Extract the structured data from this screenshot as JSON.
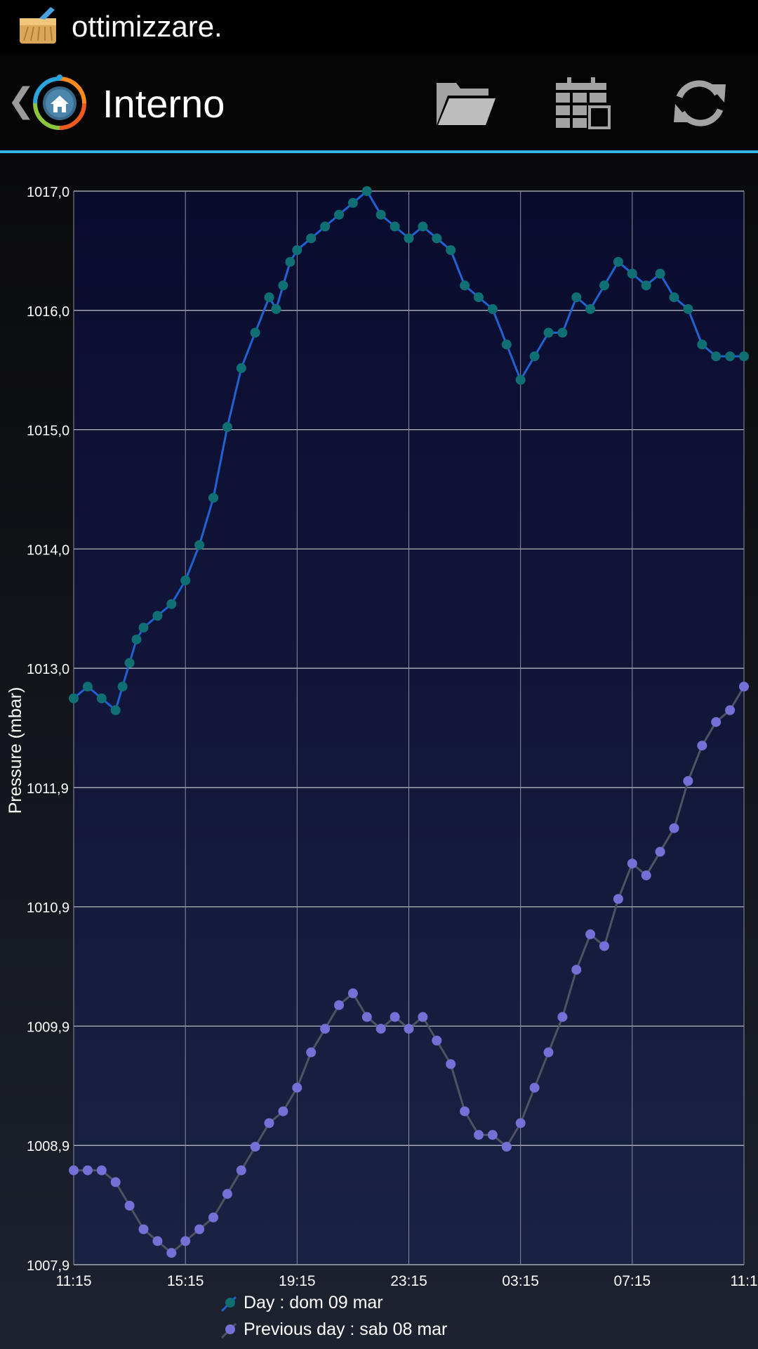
{
  "status_bar": {
    "title": "ottimizzare.",
    "icon": "broom-icon"
  },
  "action_bar": {
    "title": "Interno",
    "back_icon": "chevron-left-icon",
    "app_icon": "home-station-icon",
    "actions": [
      "folder-icon",
      "calendar-icon",
      "refresh-icon"
    ]
  },
  "colors": {
    "accent": "#33b5e5",
    "day_line": "#1f62d1",
    "day_point": "#0f6f72",
    "prev_line": "#4f5260",
    "prev_point": "#7470d6"
  },
  "chart_data": {
    "type": "line",
    "ylabel": "Pressure (mbar)",
    "xlabel": "",
    "y_ticks": [
      "1017,0",
      "1016,0",
      "1015,0",
      "1014,0",
      "1013,0",
      "1011,9",
      "1010,9",
      "1009,9",
      "1008,9",
      "1007,9"
    ],
    "ylim": [
      1007.9,
      1017.0
    ],
    "x_ticks": [
      "11:15",
      "15:15",
      "19:15",
      "23:15",
      "03:15",
      "07:15",
      "11:1"
    ],
    "xlim_hours": [
      0,
      24
    ],
    "grid": true,
    "legend_position": "bottom",
    "series": [
      {
        "name": "Day : dom 09 mar",
        "x": [
          0,
          0.5,
          1,
          1.5,
          1.75,
          2,
          2.25,
          2.5,
          3,
          3.5,
          4,
          4.5,
          5,
          5.5,
          6,
          6.5,
          7,
          7.25,
          7.5,
          7.75,
          8,
          8.5,
          9,
          9.5,
          10,
          10.5,
          11,
          11.5,
          12,
          12.5,
          13,
          13.5,
          14,
          14.5,
          15,
          15.5,
          16,
          16.5,
          17,
          17.5,
          18,
          18.5,
          19,
          19.5,
          20,
          20.5,
          21,
          21.5,
          22,
          22.5,
          23,
          23.5,
          24
        ],
        "values": [
          1012.7,
          1012.8,
          1012.7,
          1012.6,
          1012.8,
          1013.0,
          1013.2,
          1013.3,
          1013.4,
          1013.5,
          1013.7,
          1014.0,
          1014.4,
          1015.0,
          1015.5,
          1015.8,
          1016.1,
          1016.0,
          1016.2,
          1016.4,
          1016.5,
          1016.6,
          1016.7,
          1016.8,
          1016.9,
          1017.0,
          1016.8,
          1016.7,
          1016.6,
          1016.7,
          1016.6,
          1016.5,
          1016.2,
          1016.1,
          1016.0,
          1015.7,
          1015.4,
          1015.6,
          1015.8,
          1015.8,
          1016.1,
          1016.0,
          1016.2,
          1016.4,
          1016.3,
          1016.2,
          1016.3,
          1016.1,
          1016.0,
          1015.7,
          1015.6,
          1015.6,
          1015.6
        ]
      },
      {
        "name": "Previous day : sab 08 mar",
        "x": [
          0,
          0.5,
          1,
          1.5,
          2,
          2.5,
          3,
          3.5,
          4,
          4.5,
          5,
          5.5,
          6,
          6.5,
          7,
          7.5,
          8,
          8.5,
          9,
          9.5,
          10,
          10.5,
          11,
          11.5,
          12,
          12.5,
          13,
          13.5,
          14,
          14.5,
          15,
          15.5,
          16,
          16.5,
          17,
          17.5,
          18,
          18.5,
          19,
          19.5,
          20,
          20.5,
          21,
          21.5,
          22,
          22.5,
          23,
          23.5,
          24
        ],
        "values": [
          1008.7,
          1008.7,
          1008.7,
          1008.6,
          1008.4,
          1008.2,
          1008.1,
          1008.0,
          1008.1,
          1008.2,
          1008.3,
          1008.5,
          1008.7,
          1008.9,
          1009.1,
          1009.2,
          1009.4,
          1009.7,
          1009.9,
          1010.1,
          1010.2,
          1010.0,
          1009.9,
          1010.0,
          1009.9,
          1010.0,
          1009.8,
          1009.6,
          1009.2,
          1009.0,
          1009.0,
          1008.9,
          1009.1,
          1009.4,
          1009.7,
          1010.0,
          1010.4,
          1010.7,
          1010.6,
          1011.0,
          1011.3,
          1011.2,
          1011.4,
          1011.6,
          1012.0,
          1012.3,
          1012.5,
          1012.6,
          1012.8
        ]
      }
    ]
  }
}
